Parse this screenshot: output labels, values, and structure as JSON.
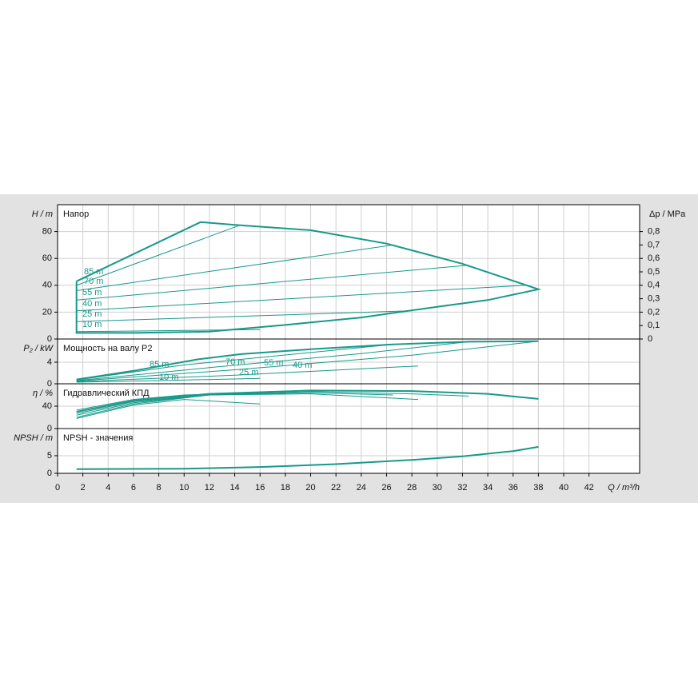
{
  "chart_data": [
    {
      "type": "line",
      "title": "Напор",
      "ylabel": "H / m",
      "y2label": "Δp / MPa",
      "ylim": [
        0,
        100
      ],
      "yticks": [
        0,
        20,
        40,
        60,
        80
      ],
      "y2lim": [
        0,
        1
      ],
      "y2ticks": [
        0,
        {
          "value": 0.1,
          "label": "0,1"
        },
        {
          "value": 0.2,
          "label": "0,2"
        },
        {
          "value": 0.3,
          "label": "0,3"
        },
        {
          "value": 0.4,
          "label": "0,4"
        },
        {
          "value": 0.5,
          "label": "0,5"
        },
        {
          "value": 0.6,
          "label": "0,6"
        },
        {
          "value": 0.7,
          "label": "0,7"
        },
        {
          "value": 0.8,
          "label": "0,8"
        }
      ],
      "grid": true,
      "series": [
        {
          "color": "#17998a",
          "line_width": 2,
          "x": [
            1.5,
            11.3,
            14,
            20,
            26,
            32,
            38,
            34,
            30,
            24,
            18,
            12,
            6,
            1.5,
            1.5
          ],
          "values": [
            43,
            87,
            85,
            81,
            71,
            56,
            37,
            29,
            24,
            16,
            10.5,
            5.5,
            4.5,
            4.5,
            43
          ]
        },
        {
          "name": "85 m",
          "color": "#17998a",
          "x": [
            1.5,
            14.5
          ],
          "values": [
            40,
            85
          ]
        },
        {
          "name": "70 m",
          "color": "#17998a",
          "x": [
            1.5,
            26.5
          ],
          "values": [
            36,
            70
          ]
        },
        {
          "name": "55 m",
          "color": "#17998a",
          "x": [
            1.5,
            32.5
          ],
          "values": [
            29,
            55
          ]
        },
        {
          "name": "40 m",
          "color": "#17998a",
          "x": [
            1.5,
            37
          ],
          "values": [
            21,
            40
          ]
        },
        {
          "name": "25 m",
          "color": "#17998a",
          "x": [
            1.5,
            28
          ],
          "values": [
            13,
            21
          ]
        },
        {
          "name": "10 m",
          "color": "#17998a",
          "x": [
            1.5,
            16
          ],
          "values": [
            5.5,
            7
          ]
        }
      ]
    },
    {
      "type": "line",
      "title": "Мощность на валу P2",
      "ylabel": "P₂ / kW",
      "ylim": [
        0,
        8.3
      ],
      "yticks": [
        0,
        4
      ],
      "grid": true,
      "series": [
        {
          "name": "85 m",
          "color": "#17998a",
          "line_width": 2,
          "x": [
            1.5,
            6,
            11,
            14.5,
            20,
            26.5,
            32.5,
            38
          ],
          "values": [
            0.8,
            2.4,
            4.5,
            5.5,
            6.4,
            7.3,
            7.8,
            7.9
          ]
        },
        {
          "name": "70 m",
          "color": "#17998a",
          "x": [
            1.5,
            10,
            20,
            26.5
          ],
          "values": [
            0.7,
            3.5,
            5.8,
            7.3
          ]
        },
        {
          "name": "55 m",
          "color": "#17998a",
          "x": [
            1.5,
            12,
            24,
            32.5
          ],
          "values": [
            0.6,
            3.0,
            5.6,
            7.8
          ]
        },
        {
          "name": "40 m",
          "color": "#17998a",
          "x": [
            1.5,
            14,
            28,
            38
          ],
          "values": [
            0.5,
            2.6,
            5.3,
            7.9
          ]
        },
        {
          "name": "25 m",
          "color": "#17998a",
          "x": [
            1.5,
            14,
            28.5
          ],
          "values": [
            0.4,
            1.6,
            3.3
          ]
        },
        {
          "name": "10 m",
          "color": "#17998a",
          "x": [
            1.5,
            8,
            16
          ],
          "values": [
            0.3,
            0.6,
            1.0
          ]
        }
      ]
    },
    {
      "type": "line",
      "title": "Гидравлический КПД",
      "ylabel": "η / %",
      "ylim": [
        0,
        80
      ],
      "yticks": [
        0,
        40
      ],
      "grid": true,
      "series": [
        {
          "color": "#17998a",
          "line_width": 2,
          "x": [
            1.5,
            6,
            12,
            20,
            28,
            34,
            38
          ],
          "values": [
            30,
            50,
            62,
            68,
            67,
            62,
            53
          ]
        },
        {
          "color": "#17998a",
          "x": [
            1.5,
            6,
            12,
            20,
            28,
            32.5
          ],
          "values": [
            27,
            48,
            60,
            66,
            62,
            58
          ]
        },
        {
          "color": "#17998a",
          "x": [
            1.5,
            6,
            12,
            20,
            26.5
          ],
          "values": [
            24,
            46,
            60,
            64,
            60
          ]
        },
        {
          "color": "#17998a",
          "x": [
            1.5,
            6,
            10,
            14.5
          ],
          "values": [
            33,
            52,
            60,
            63
          ]
        },
        {
          "color": "#17998a",
          "x": [
            1.5,
            6,
            12,
            20,
            28.5
          ],
          "values": [
            20,
            44,
            60,
            62,
            52
          ]
        },
        {
          "color": "#17998a",
          "x": [
            1.5,
            6,
            10,
            16
          ],
          "values": [
            18,
            42,
            52,
            44
          ]
        }
      ]
    },
    {
      "type": "line",
      "title": "NPSH - значения",
      "ylabel": "NPSH / m",
      "ylim": [
        0,
        12.7
      ],
      "yticks": [
        0,
        5
      ],
      "grid": true,
      "xlabel": "Q / m³/h",
      "xlim": [
        0,
        46
      ],
      "xticks": [
        0,
        2,
        4,
        6,
        8,
        10,
        12,
        14,
        16,
        18,
        20,
        22,
        24,
        26,
        28,
        30,
        32,
        34,
        36,
        38,
        40,
        42
      ],
      "series": [
        {
          "color": "#17998a",
          "line_width": 2,
          "x": [
            1.5,
            10,
            16,
            22,
            28,
            32,
            36,
            38
          ],
          "values": [
            1.2,
            1.3,
            1.8,
            2.6,
            3.8,
            4.8,
            6.3,
            7.5
          ]
        }
      ]
    }
  ]
}
